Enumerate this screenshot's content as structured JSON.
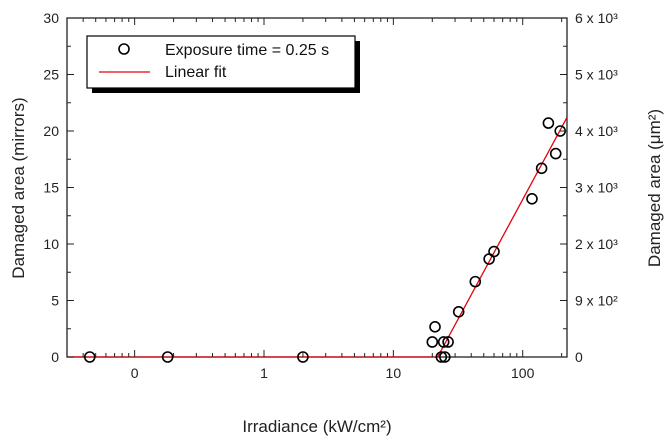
{
  "chart_data": {
    "type": "scatter",
    "xlabel": "Irradiance (kW/cm²)",
    "ylabel": "Damaged area (mirrors)",
    "ylabel_right": "Damaged area (μm²)",
    "x_ticks": [
      {
        "label": "0",
        "value": 0.1
      },
      {
        "label": "1",
        "value": 1
      },
      {
        "label": "10",
        "value": 10
      },
      {
        "label": "100",
        "value": 100
      }
    ],
    "x_log": true,
    "xlim": [
      0.03,
      220
    ],
    "ylim": [
      0,
      30
    ],
    "y_ticks": [
      0,
      5,
      10,
      15,
      20,
      25,
      30
    ],
    "y_ticks_labels": [
      "0",
      "5",
      "10",
      "15",
      "20",
      "25",
      "30"
    ],
    "y_right_ticks": [
      {
        "label": "0",
        "y": 0
      },
      {
        "label": "9 x 10²",
        "y": 5
      },
      {
        "label": "2 x 10³",
        "y": 10
      },
      {
        "label": "3 x 10³",
        "y": 15
      },
      {
        "label": "4 x 10³",
        "y": 20
      },
      {
        "label": "5 x 10³",
        "y": 25
      },
      {
        "label": "6 x 10³",
        "y": 30
      }
    ],
    "legend": {
      "placement": "top-left",
      "entries": [
        {
          "label": "Exposure time = 0.25 s",
          "kind": "marker"
        },
        {
          "label": "Linear fit",
          "kind": "line"
        }
      ]
    },
    "series": [
      {
        "name": "Exposure time = 0.25 s",
        "color": "#000000",
        "x": [
          0.045,
          0.18,
          2.0,
          20,
          21,
          23.5,
          24.5,
          25,
          26.5,
          32,
          43,
          55,
          60,
          118,
          140,
          158,
          180,
          195
        ],
        "y": [
          0,
          0,
          0,
          1.33,
          2.67,
          0,
          1.33,
          0,
          1.33,
          4.0,
          6.67,
          8.67,
          9.33,
          14.0,
          16.7,
          20.7,
          18.0,
          20.0
        ]
      },
      {
        "name": "Linear fit",
        "type": "line",
        "color": "#e8000b",
        "x": [
          0.03,
          22,
          220
        ],
        "y": [
          0,
          0,
          21.2
        ]
      }
    ]
  }
}
